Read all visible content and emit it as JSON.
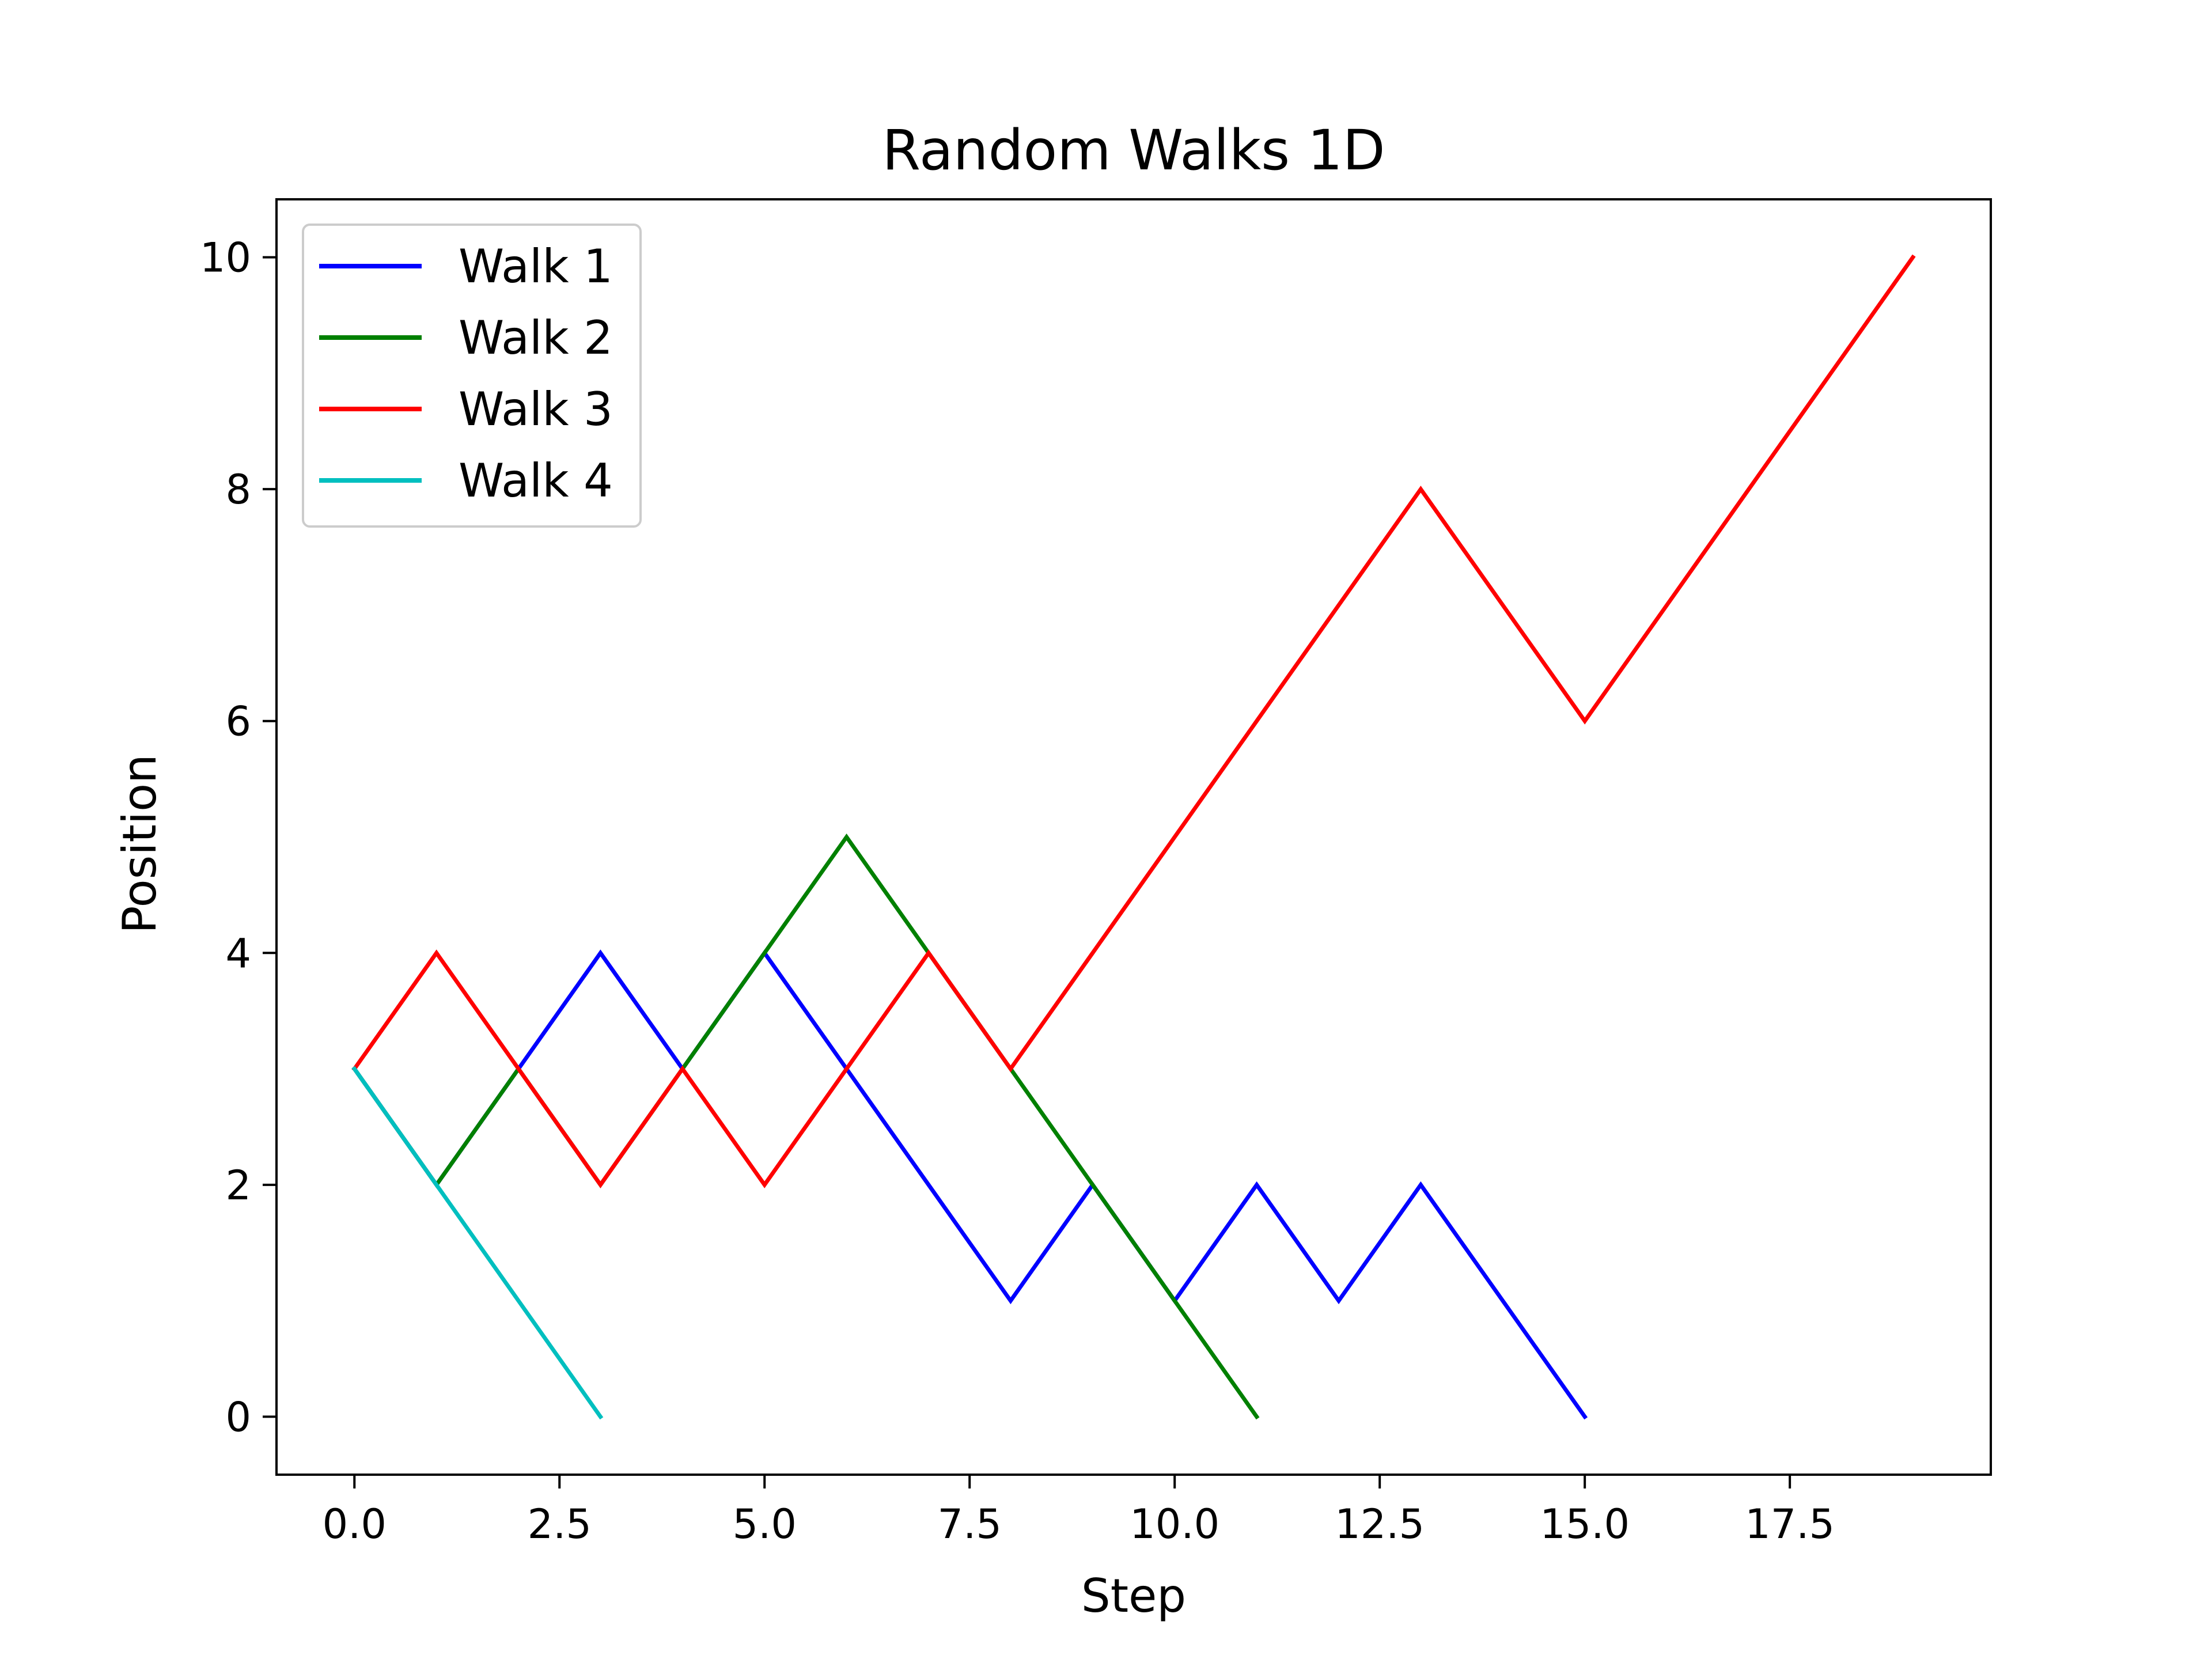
{
  "chart_data": {
    "type": "line",
    "title": "Random Walks 1D",
    "xlabel": "Step",
    "ylabel": "Position",
    "xlim": [
      -0.95,
      19.95
    ],
    "ylim": [
      -0.5,
      10.5
    ],
    "xticks": [
      0.0,
      2.5,
      5.0,
      7.5,
      10.0,
      12.5,
      15.0,
      17.5
    ],
    "xtick_labels": [
      "0.0",
      "2.5",
      "5.0",
      "7.5",
      "10.0",
      "12.5",
      "15.0",
      "17.5"
    ],
    "yticks": [
      0,
      2,
      4,
      6,
      8,
      10
    ],
    "ytick_labels": [
      "0",
      "2",
      "4",
      "6",
      "8",
      "10"
    ],
    "grid": false,
    "legend_position": "upper-left",
    "series": [
      {
        "name": "Walk 1",
        "color": "#0000ff",
        "x": [
          0,
          1,
          2,
          3,
          4,
          5,
          6,
          7,
          8,
          9,
          10,
          11,
          12,
          13,
          14,
          15
        ],
        "y": [
          3,
          2,
          3,
          4,
          3,
          4,
          3,
          2,
          1,
          2,
          1,
          2,
          1,
          2,
          1,
          0
        ]
      },
      {
        "name": "Walk 2",
        "color": "#008000",
        "x": [
          0,
          1,
          2,
          3,
          4,
          5,
          6,
          7,
          8,
          9,
          10,
          11
        ],
        "y": [
          3,
          2,
          3,
          2,
          3,
          4,
          5,
          4,
          3,
          2,
          1,
          0
        ]
      },
      {
        "name": "Walk 3",
        "color": "#ff0000",
        "x": [
          0,
          1,
          2,
          3,
          4,
          5,
          6,
          7,
          8,
          9,
          10,
          11,
          12,
          13,
          14,
          15,
          16,
          17,
          18,
          19
        ],
        "y": [
          3,
          4,
          3,
          2,
          3,
          2,
          3,
          4,
          3,
          4,
          5,
          6,
          7,
          8,
          7,
          6,
          7,
          8,
          9,
          10
        ]
      },
      {
        "name": "Walk 4",
        "color": "#00bfbf",
        "x": [
          0,
          1,
          2,
          3
        ],
        "y": [
          3,
          2,
          1,
          0
        ]
      }
    ]
  }
}
